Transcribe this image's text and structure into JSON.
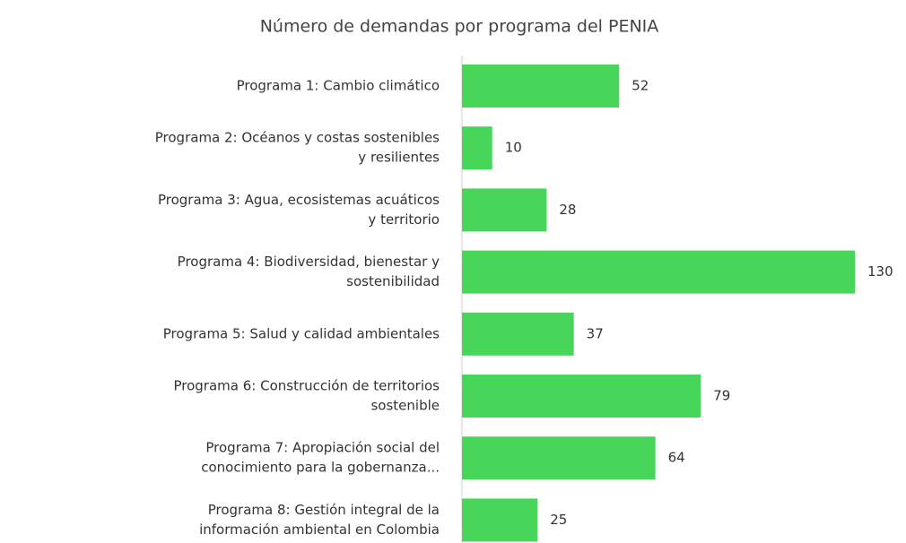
{
  "chart_data": {
    "type": "bar",
    "orientation": "horizontal",
    "title": "Número de demandas por programa del PENIA",
    "categories": [
      [
        "Programa 1: Cambio climático"
      ],
      [
        "Programa 2: Océanos y costas sostenibles",
        "y resilientes"
      ],
      [
        "Programa 3: Agua, ecosistemas acuáticos",
        "y territorio"
      ],
      [
        "Programa 4: Biodiversidad, bienestar y",
        "sostenibilidad"
      ],
      [
        "Programa 5: Salud y calidad ambientales"
      ],
      [
        "Programa 6: Construcción de territorios",
        "sostenible"
      ],
      [
        "Programa 7: Apropiación social del",
        "conocimiento para la gobernanza..."
      ],
      [
        "Programa 8: Gestión integral de la",
        "información ambiental en Colombia"
      ]
    ],
    "values": [
      52,
      10,
      28,
      130,
      37,
      79,
      64,
      25
    ],
    "color": "#48d65a"
  }
}
